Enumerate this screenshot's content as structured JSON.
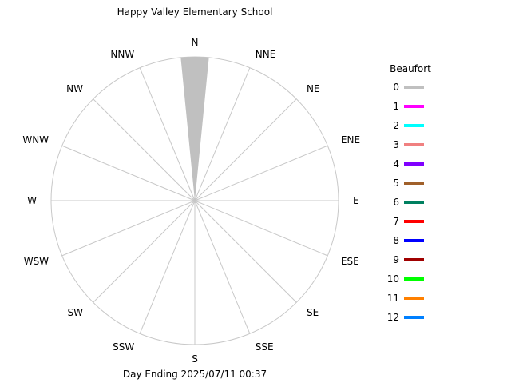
{
  "chart_data": {
    "type": "windrose",
    "title": "Happy Valley Elementary School",
    "footer": "Day Ending 2025/07/11 00:37",
    "directions": [
      "N",
      "NNE",
      "NE",
      "ENE",
      "E",
      "ESE",
      "SE",
      "SSE",
      "S",
      "SSW",
      "SW",
      "WSW",
      "W",
      "WNW",
      "NW",
      "NNW"
    ],
    "legend": {
      "title": "Beaufort",
      "entries": [
        {
          "label": "0",
          "color": "#c0c0c0"
        },
        {
          "label": "1",
          "color": "#ff00ff"
        },
        {
          "label": "2",
          "color": "#00ffff"
        },
        {
          "label": "3",
          "color": "#f08080"
        },
        {
          "label": "4",
          "color": "#8000ff"
        },
        {
          "label": "5",
          "color": "#a0602a"
        },
        {
          "label": "6",
          "color": "#008060"
        },
        {
          "label": "7",
          "color": "#ff0000"
        },
        {
          "label": "8",
          "color": "#0000ff"
        },
        {
          "label": "9",
          "color": "#a00000"
        },
        {
          "label": "10",
          "color": "#00ff00"
        },
        {
          "label": "11",
          "color": "#ff8000"
        },
        {
          "label": "12",
          "color": "#0080ff"
        }
      ]
    },
    "series": [
      {
        "beaufort": "0",
        "values": [
          1,
          0,
          0,
          0,
          0,
          0,
          0,
          0,
          0,
          0,
          0,
          0,
          0,
          0,
          0,
          0
        ]
      }
    ],
    "max_frequency": 1,
    "grid": true
  }
}
